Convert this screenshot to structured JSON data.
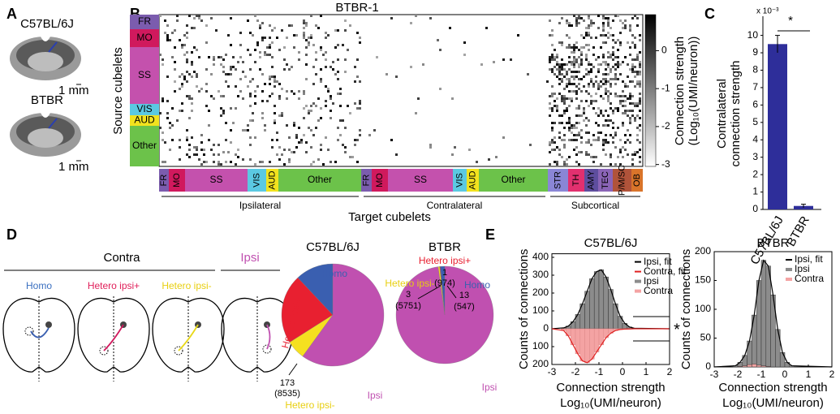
{
  "panel_labels": [
    "A",
    "B",
    "C",
    "D",
    "E"
  ],
  "panel_a": {
    "strain_1": "C57BL/6J",
    "scale_1": "1 mm",
    "strain_2": "BTBR",
    "scale_2": "1 mm"
  },
  "panel_b": {
    "title": "BTBR-1",
    "y_label": "Source cubelets",
    "x_label": "Target cubelets",
    "source_groups": [
      "FR",
      "MO",
      "SS",
      "VIS",
      "AUD",
      "Other"
    ],
    "source_colors": [
      "#7b5cae",
      "#d0195d",
      "#c451ad",
      "#5bc9e2",
      "#f2e21e",
      "#6cc24a"
    ],
    "target_groups": [
      "FR",
      "MO",
      "SS",
      "VIS",
      "AUD",
      "Other",
      "FR",
      "MO",
      "SS",
      "VIS",
      "AUD",
      "Other",
      "STR",
      "TH",
      "AMY",
      "TEC",
      "P/M/SC",
      "OB"
    ],
    "target_colors": [
      "#7b5cae",
      "#d0195d",
      "#c451ad",
      "#5bc9e2",
      "#f2e21e",
      "#6cc24a",
      "#7b5cae",
      "#d0195d",
      "#c451ad",
      "#5bc9e2",
      "#f2e21e",
      "#6cc24a",
      "#8a86d6",
      "#e2306f",
      "#5e4e9e",
      "#8a64b6",
      "#b0533a",
      "#d9742a"
    ],
    "target_sections": [
      "Ipsilateral",
      "Contralateral",
      "Subcortical"
    ],
    "colorbar": {
      "label_1": "Connection strength",
      "label_2": "(Log₁₀(UMI/neuron))",
      "lim": [
        -3.05,
        0.95
      ],
      "ticks": [
        0,
        -1,
        -2,
        -3
      ]
    }
  },
  "panel_d": {
    "contra": "Contra",
    "ipsi": "Ipsi",
    "homo": "Homo",
    "hetero_plus": "Hetero ipsi+",
    "hetero_minus": "Hetero ipsi-"
  },
  "chart_data": [
    {
      "type": "bar",
      "multiplier": "x 10⁻³",
      "y_label_1": "Contralateral",
      "y_label_2": "connection strength",
      "categories": [
        "C57BL/6J",
        "BTBR"
      ],
      "values": [
        9.5,
        0.2
      ],
      "errors": [
        0.5,
        0.1
      ],
      "color": "#2e2e9a",
      "ylim": [
        0,
        11.1
      ],
      "yticks": [
        0,
        1,
        2,
        3,
        4,
        5,
        6,
        7,
        8,
        9,
        10
      ],
      "significance": "*"
    },
    {
      "type": "pie",
      "title": "C57BL/6J",
      "categories": [
        "Homo",
        "Hetero ipsi+",
        "Hetero ipsi-",
        "Ipsi"
      ],
      "values": [
        12,
        22,
        6,
        60
      ],
      "colors": [
        "#3a5fb0",
        "#e82030",
        "#f5e020",
        "#c050b0"
      ],
      "counts": [
        null,
        null,
        173,
        null
      ],
      "totals": [
        null,
        null,
        {
          "value": 8535,
          "label": "(8535)"
        },
        null
      ]
    },
    {
      "type": "pie",
      "title": "BTBR",
      "categories": [
        "Homo",
        "Hetero ipsi+",
        "Hetero ipsi-",
        "Ipsi"
      ],
      "values": [
        1.5,
        0.2,
        0.5,
        97.8
      ],
      "colors": [
        "#3a5fb0",
        "#e82030",
        "#f5e020",
        "#c050b0"
      ],
      "counts": [
        13,
        1,
        3,
        null
      ],
      "totals": [
        {
          "value": 547,
          "label": "(547)"
        },
        {
          "value": 974,
          "label": "(974)"
        },
        {
          "value": 5751,
          "label": "(5751)"
        },
        null
      ]
    },
    {
      "type": "histogram",
      "title": "C57BL/6J",
      "x_label_1": "Connection strength",
      "x_label_2": "Log₁₀(UMI/neuron)",
      "y_label": "Counts of connections",
      "bins": [
        -2.6,
        -2.4,
        -2.2,
        -2.0,
        -1.8,
        -1.6,
        -1.4,
        -1.2,
        -1.0,
        -0.8,
        -0.6,
        -0.4,
        -0.2,
        0.0,
        0.2,
        0.4,
        0.6
      ],
      "series": [
        {
          "name": "Ipsi",
          "color": "#8c8c8c",
          "fit_name": "Ipsi, fit",
          "fit_color": "#000000",
          "values": [
            5,
            15,
            40,
            80,
            140,
            210,
            280,
            320,
            330,
            290,
            220,
            140,
            70,
            30,
            10,
            3
          ]
        },
        {
          "name": "Contra",
          "color": "#f4a3a3",
          "fit_name": "Contra, fit",
          "fit_color": "#e02020",
          "axis": "y2",
          "values": [
            10,
            40,
            90,
            140,
            180,
            190,
            170,
            130,
            90,
            50,
            25,
            10,
            4,
            2,
            1,
            0
          ]
        }
      ],
      "xlim": [
        -3,
        2
      ],
      "xticks": [
        -3,
        -2,
        -1,
        0,
        1,
        2
      ],
      "ylim": [
        0,
        420
      ],
      "yticks": [
        0,
        100,
        200,
        300,
        400
      ],
      "y2lim": [
        0,
        200
      ],
      "y2ticks": [
        100,
        200
      ],
      "significance": "*"
    },
    {
      "type": "histogram",
      "title": "BTBR",
      "x_label_1": "Connection strength",
      "x_label_2": "Log₁₀(UMI/neuron)",
      "y_label": "Counts of connections",
      "bins": [
        -2.2,
        -2.0,
        -1.8,
        -1.6,
        -1.4,
        -1.2,
        -1.0,
        -0.8,
        -0.6,
        -0.4,
        -0.2,
        0.0,
        0.2,
        0.4
      ],
      "series": [
        {
          "name": "Ipsi",
          "color": "#8c8c8c",
          "fit_name": "Ipsi, fit",
          "fit_color": "#000000",
          "values": [
            2,
            8,
            20,
            45,
            90,
            150,
            185,
            175,
            125,
            65,
            25,
            8,
            2
          ]
        },
        {
          "name": "Contra",
          "color": "#f4a3a3",
          "values": [
            0,
            1,
            2,
            4,
            5,
            3,
            2,
            1,
            0,
            0,
            0,
            0,
            0
          ]
        }
      ],
      "xlim": [
        -3,
        2
      ],
      "xticks": [
        -3,
        -2,
        -1,
        0,
        1,
        2
      ],
      "ylim": [
        0,
        200
      ],
      "yticks": [
        0,
        50,
        100,
        150,
        200
      ]
    }
  ]
}
